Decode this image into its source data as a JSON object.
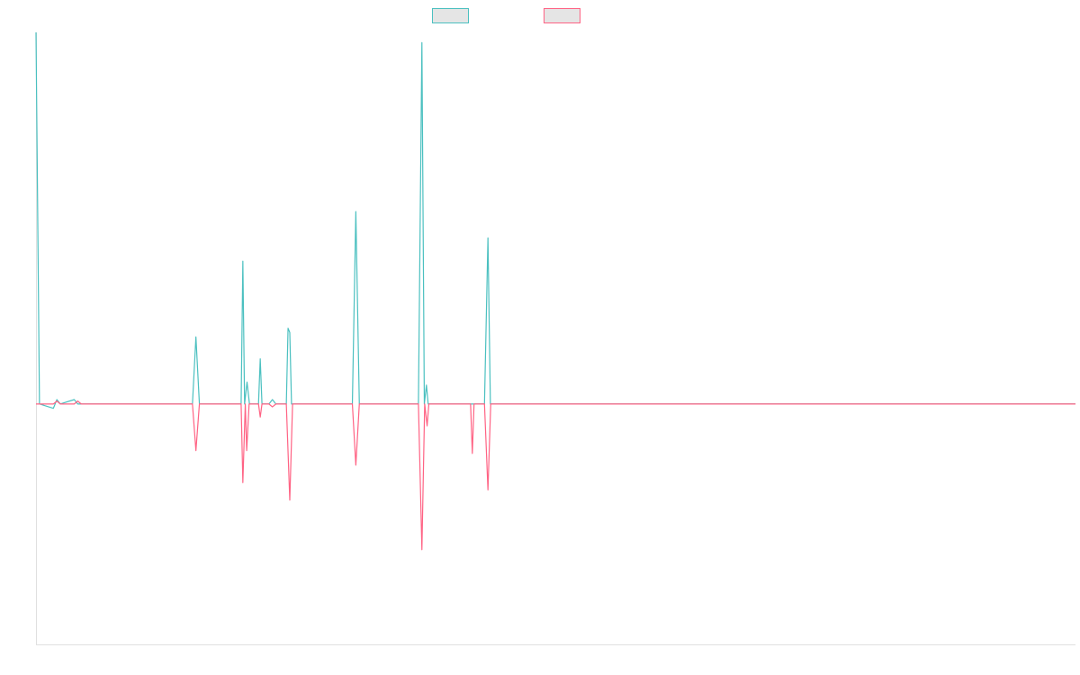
{
  "chart_data": {
    "type": "line",
    "title": "",
    "xlabel": "",
    "ylabel": "",
    "x_count": 300,
    "ylim": [
      -165,
      255
    ],
    "grid": false,
    "legend_position": "top-center",
    "series": [
      {
        "name": "",
        "color": "#4bc0c0",
        "fill": "#e5e5e5",
        "points": [
          [
            0,
            255
          ],
          [
            1,
            0
          ],
          [
            5,
            -3
          ],
          [
            6,
            3
          ],
          [
            7,
            0
          ],
          [
            11,
            3
          ],
          [
            12,
            0
          ],
          [
            45,
            0
          ],
          [
            46,
            46
          ],
          [
            47,
            0
          ],
          [
            59,
            0
          ],
          [
            59.5,
            98
          ],
          [
            60,
            0
          ],
          [
            60.7,
            15
          ],
          [
            61.4,
            0
          ],
          [
            64,
            0
          ],
          [
            64.5,
            31
          ],
          [
            65,
            0
          ],
          [
            67,
            0
          ],
          [
            68,
            3
          ],
          [
            69,
            0
          ],
          [
            72,
            0
          ],
          [
            72.5,
            52
          ],
          [
            73,
            49
          ],
          [
            73.5,
            0
          ],
          [
            91,
            0
          ],
          [
            92,
            132
          ],
          [
            93,
            0
          ],
          [
            110,
            0
          ],
          [
            111,
            248
          ],
          [
            111.7,
            0
          ],
          [
            112.3,
            13
          ],
          [
            112.8,
            0
          ],
          [
            129,
            0
          ],
          [
            130,
            114
          ],
          [
            130.7,
            0
          ],
          [
            299,
            0
          ]
        ]
      },
      {
        "name": "",
        "color": "#ff6384",
        "fill": "#e5e5e5",
        "points": [
          [
            0,
            0
          ],
          [
            5,
            0
          ],
          [
            6,
            2
          ],
          [
            7,
            0
          ],
          [
            11,
            0
          ],
          [
            12,
            2
          ],
          [
            13,
            0
          ],
          [
            45,
            0
          ],
          [
            46,
            -32
          ],
          [
            47,
            0
          ],
          [
            59,
            0
          ],
          [
            59.5,
            -54
          ],
          [
            60.2,
            0
          ],
          [
            60.6,
            -32
          ],
          [
            61.3,
            0
          ],
          [
            64,
            0
          ],
          [
            64.5,
            -9
          ],
          [
            65,
            0
          ],
          [
            67,
            0
          ],
          [
            68,
            -2
          ],
          [
            69,
            0
          ],
          [
            72,
            0
          ],
          [
            73,
            -66
          ],
          [
            73.8,
            0
          ],
          [
            91,
            0
          ],
          [
            92,
            -42
          ],
          [
            93,
            0
          ],
          [
            110,
            0
          ],
          [
            111,
            -100
          ],
          [
            111.8,
            0
          ],
          [
            112.5,
            -15
          ],
          [
            113,
            0
          ],
          [
            125,
            0
          ],
          [
            125.5,
            -34
          ],
          [
            126,
            0
          ],
          [
            129,
            0
          ],
          [
            130,
            -59
          ],
          [
            130.8,
            0
          ],
          [
            299,
            0
          ]
        ]
      }
    ]
  }
}
